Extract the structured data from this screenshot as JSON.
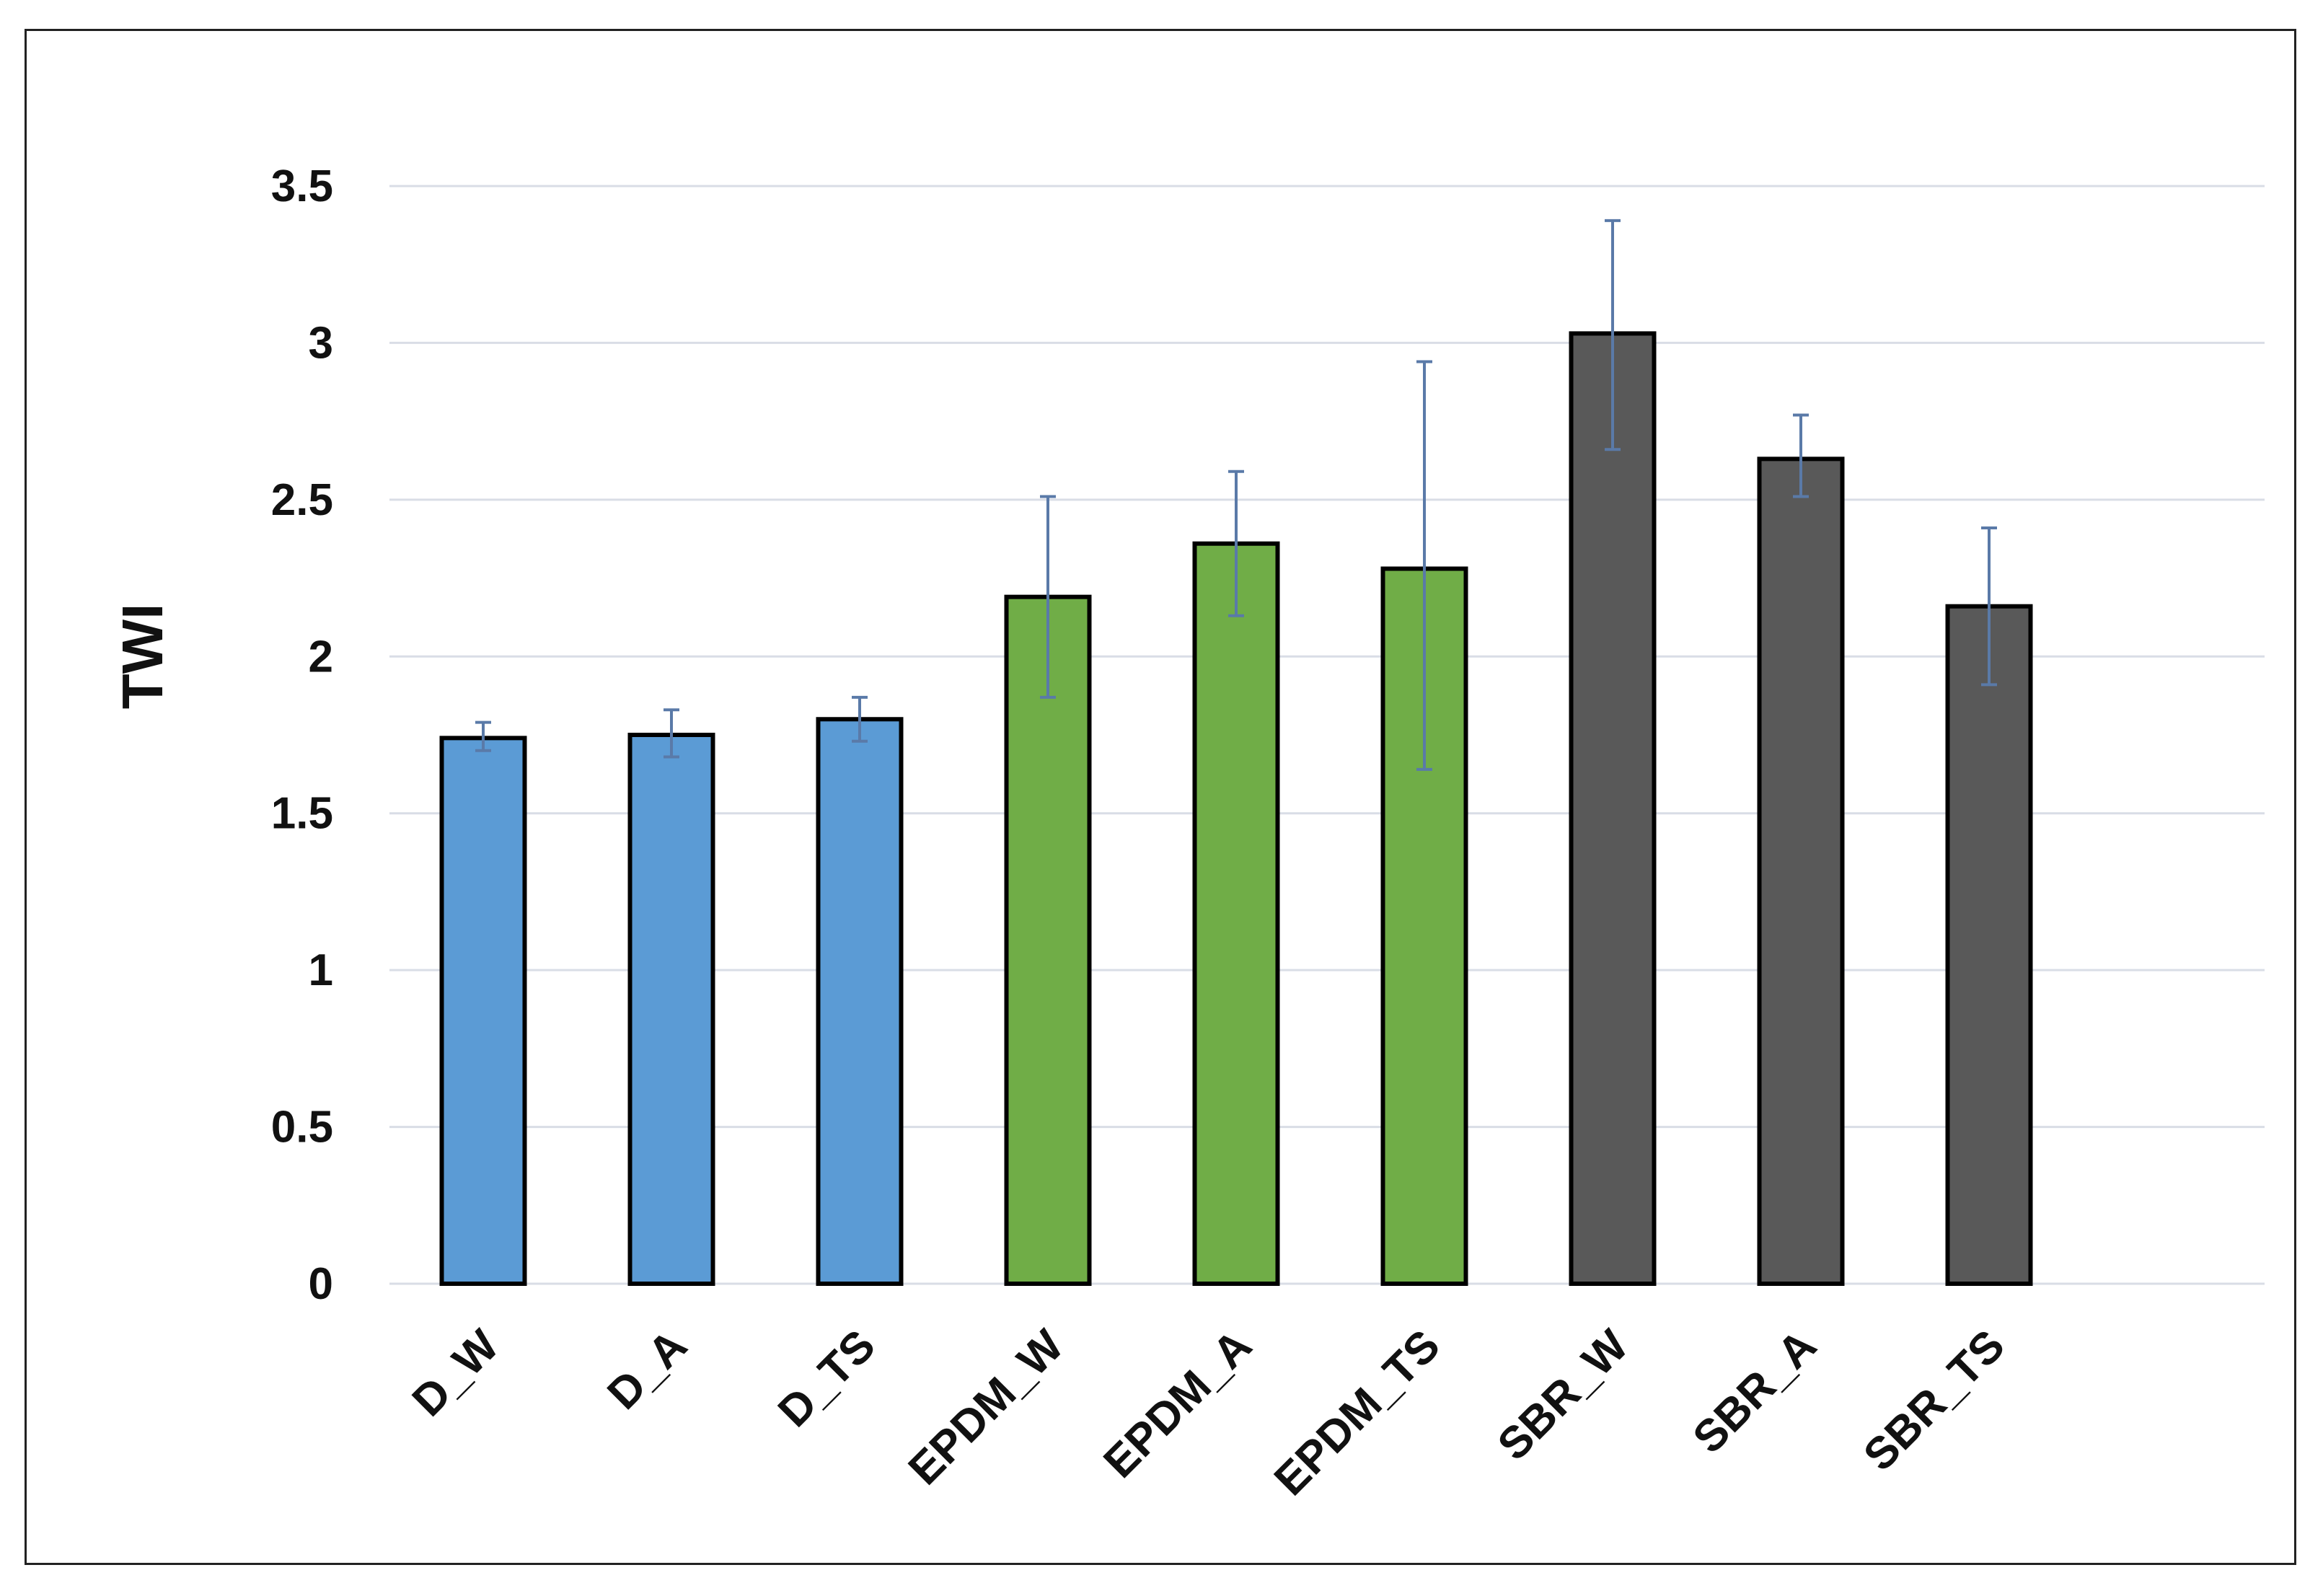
{
  "chart_data": {
    "type": "bar",
    "categories": [
      "D_W",
      "D_A",
      "D_TS",
      "EPDM_W",
      "EPDM_A",
      "EPDM_TS",
      "SBR_W",
      "SBR_A",
      "SBR_TS"
    ],
    "values": [
      1.74,
      1.75,
      1.8,
      2.19,
      2.36,
      2.28,
      3.03,
      2.63,
      2.16
    ],
    "error_low": [
      1.7,
      1.68,
      1.73,
      1.87,
      2.13,
      1.64,
      2.66,
      2.51,
      1.91
    ],
    "error_high": [
      1.79,
      1.83,
      1.87,
      2.51,
      2.59,
      2.94,
      3.39,
      2.77,
      2.41
    ],
    "bar_colors": [
      "#5b9bd5",
      "#5b9bd5",
      "#5b9bd5",
      "#70ad47",
      "#70ad47",
      "#70ad47",
      "#595959",
      "#595959",
      "#595959"
    ],
    "error_bar_color": "#5a7aa8",
    "grid_color": "#d9dde6",
    "title": "",
    "xlabel": "",
    "ylabel": "TWI",
    "ylim": [
      0,
      3.5
    ],
    "yticks": [
      "0",
      "0.5",
      "1",
      "1.5",
      "2",
      "2.5",
      "3",
      "3.5"
    ],
    "ytick_values": [
      0,
      0.5,
      1,
      1.5,
      2,
      2.5,
      3,
      3.5
    ],
    "grid": true,
    "legend": "none"
  }
}
